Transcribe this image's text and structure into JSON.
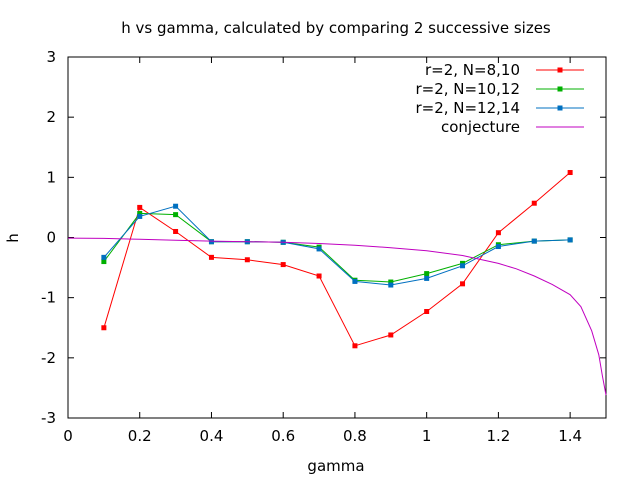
{
  "chart_data": {
    "type": "line",
    "title": "h vs gamma, calculated by comparing 2 successive sizes",
    "xlabel": "gamma",
    "ylabel": "h",
    "xlim": [
      0,
      1.5
    ],
    "ylim": [
      -3,
      3
    ],
    "xticks": [
      0,
      0.2,
      0.4,
      0.6,
      0.8,
      1,
      1.2,
      1.4
    ],
    "xtick_labels": [
      "0",
      "0.2",
      "0.4",
      "0.6",
      "0.8",
      "1",
      "1.2",
      "1.4"
    ],
    "yticks": [
      -3,
      -2,
      -1,
      0,
      1,
      2,
      3
    ],
    "ytick_labels": [
      "-3",
      "-2",
      "-1",
      "0",
      "1",
      "2",
      "3"
    ],
    "grid": false,
    "legend_position": "top-right",
    "series": [
      {
        "name": "r=2, N=8,10",
        "color": "#ff0000",
        "markers": true,
        "x": [
          0.1,
          0.2,
          0.3,
          0.4,
          0.5,
          0.6,
          0.7,
          0.8,
          0.9,
          1.0,
          1.1,
          1.2,
          1.3,
          1.4
        ],
        "y": [
          -1.5,
          0.5,
          0.1,
          -0.33,
          -0.37,
          -0.45,
          -0.64,
          -1.8,
          -1.62,
          -1.23,
          -0.77,
          0.08,
          0.57,
          1.08
        ]
      },
      {
        "name": "r=2, N=10,12",
        "color": "#00b000",
        "markers": true,
        "x": [
          0.1,
          0.2,
          0.3,
          0.4,
          0.5,
          0.6,
          0.7,
          0.8,
          0.9,
          1.0,
          1.1,
          1.2,
          1.3,
          1.4
        ],
        "y": [
          -0.4,
          0.4,
          0.38,
          -0.07,
          -0.07,
          -0.08,
          -0.16,
          -0.71,
          -0.74,
          -0.6,
          -0.43,
          -0.12,
          -0.06,
          -0.04
        ]
      },
      {
        "name": "r=2, N=12,14",
        "color": "#0070c0",
        "markers": true,
        "x": [
          0.1,
          0.2,
          0.3,
          0.4,
          0.5,
          0.6,
          0.7,
          0.8,
          0.9,
          1.0,
          1.1,
          1.2,
          1.3,
          1.4
        ],
        "y": [
          -0.33,
          0.35,
          0.52,
          -0.07,
          -0.07,
          -0.08,
          -0.19,
          -0.73,
          -0.79,
          -0.68,
          -0.47,
          -0.15,
          -0.06,
          -0.04
        ]
      },
      {
        "name": "conjecture",
        "color": "#c000c0",
        "markers": false,
        "x": [
          0,
          0.1,
          0.2,
          0.3,
          0.4,
          0.5,
          0.6,
          0.7,
          0.8,
          0.9,
          1.0,
          1.1,
          1.2,
          1.25,
          1.3,
          1.35,
          1.4,
          1.43,
          1.46,
          1.48,
          1.49,
          1.5
        ],
        "y": [
          -0.01,
          -0.015,
          -0.03,
          -0.045,
          -0.06,
          -0.07,
          -0.08,
          -0.1,
          -0.13,
          -0.17,
          -0.22,
          -0.3,
          -0.43,
          -0.52,
          -0.64,
          -0.78,
          -0.95,
          -1.15,
          -1.55,
          -1.95,
          -2.3,
          -2.62
        ]
      }
    ]
  }
}
